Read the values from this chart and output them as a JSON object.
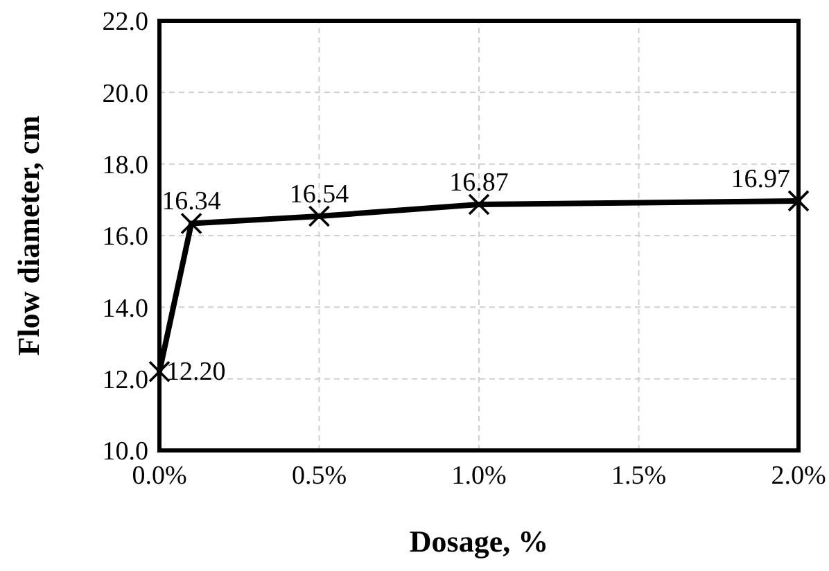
{
  "chart_data": {
    "type": "line",
    "xlabel": "Dosage, %",
    "ylabel": "Flow diameter, cm",
    "x": [
      0,
      0.1,
      0.5,
      1.0,
      2.0
    ],
    "series": [
      {
        "color": "#000000",
        "values": [
          12.2,
          16.34,
          16.54,
          16.87,
          16.97
        ],
        "value_labels": [
          "12.20",
          "16.34",
          "16.54",
          "16.87",
          "16.97"
        ]
      }
    ],
    "xlim": [
      0,
      2
    ],
    "xticks": [
      {
        "value": 0,
        "label": "0.0%"
      },
      {
        "value": 0.5,
        "label": "0.5%"
      },
      {
        "value": 1,
        "label": "1.0%"
      },
      {
        "value": 1.5,
        "label": "1.5%"
      },
      {
        "value": 2,
        "label": "2.0%"
      }
    ],
    "ylim": [
      10,
      22
    ],
    "yticks": [
      {
        "value": 10,
        "label": "10.0"
      },
      {
        "value": 12,
        "label": "12.0"
      },
      {
        "value": 14,
        "label": "14.0"
      },
      {
        "value": 16,
        "label": "16.0"
      },
      {
        "value": 18,
        "label": "18.0"
      },
      {
        "value": 20,
        "label": "20.0"
      },
      {
        "value": 22,
        "label": "22.0"
      }
    ],
    "grid": true,
    "marker": "cross",
    "line_style": "solid"
  }
}
